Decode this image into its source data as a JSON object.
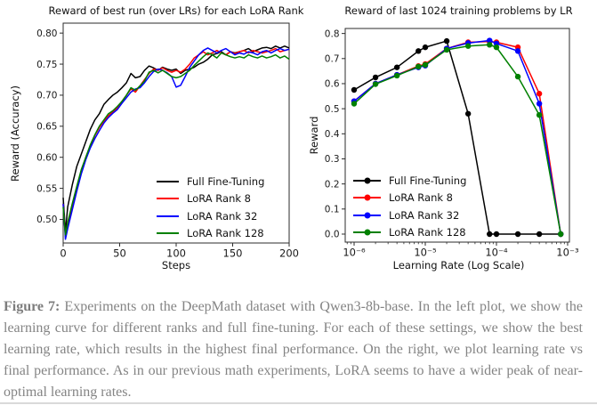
{
  "figure_caption": {
    "label": "Figure 7:",
    "text": "Experiments on the DeepMath dataset with Qwen3-8b-base. In the left plot, we show the learning curve for different ranks and full fine-tuning. For each of these settings, we show the best learning rate, which results in the highest final performance. On the right, we plot learning rate vs final performance. As in our previous math experiments, LoRA seems to have a wider peak of near-optimal learning rates."
  },
  "colors": {
    "full_fine_tuning": "#000000",
    "lora_rank_8": "#ff0000",
    "lora_rank_32": "#0000ff",
    "lora_rank_128": "#008000",
    "axis": "#2b2b2b",
    "caption_text": "#848484",
    "bottom_rule": "#d9d9d9"
  },
  "chart_data": [
    {
      "type": "line",
      "title": "Reward of best run (over LRs) for each LoRA Rank",
      "xlabel": "Steps",
      "ylabel": "Reward (Accuracy)",
      "x_scale": "linear",
      "xlim": [
        0,
        200
      ],
      "ylim": [
        0.462,
        0.816
      ],
      "grid": false,
      "legend_position": "lower right",
      "markers": false,
      "x_ticks": [
        0,
        50,
        100,
        150,
        200
      ],
      "x_tick_labels": [
        "0",
        "50",
        "100",
        "150",
        "200"
      ],
      "y_ticks": [
        0.5,
        0.55,
        0.6,
        0.65,
        0.7,
        0.75,
        0.8
      ],
      "y_tick_labels": [
        "0.50",
        "0.55",
        "0.60",
        "0.65",
        "0.70",
        "0.75",
        "0.80"
      ],
      "x": [
        0,
        2,
        4,
        8,
        12,
        16,
        20,
        24,
        28,
        32,
        36,
        40,
        44,
        48,
        52,
        56,
        60,
        64,
        68,
        72,
        76,
        80,
        84,
        88,
        92,
        96,
        100,
        104,
        108,
        112,
        116,
        120,
        124,
        128,
        132,
        136,
        140,
        144,
        148,
        152,
        156,
        160,
        164,
        168,
        172,
        176,
        180,
        184,
        188,
        192,
        196,
        200
      ],
      "series": [
        {
          "name": "Full Fine-Tuning",
          "color": "#000000",
          "values": [
            0.535,
            0.48,
            0.52,
            0.555,
            0.585,
            0.605,
            0.625,
            0.645,
            0.66,
            0.67,
            0.685,
            0.693,
            0.7,
            0.705,
            0.712,
            0.72,
            0.735,
            0.728,
            0.73,
            0.74,
            0.747,
            0.744,
            0.74,
            0.745,
            0.742,
            0.74,
            0.742,
            0.735,
            0.74,
            0.742,
            0.745,
            0.75,
            0.753,
            0.758,
            0.765,
            0.767,
            0.77,
            0.765,
            0.77,
            0.768,
            0.77,
            0.772,
            0.775,
            0.77,
            0.773,
            0.776,
            0.777,
            0.775,
            0.779,
            0.776,
            0.779,
            0.776
          ]
        },
        {
          "name": "LoRA Rank 8",
          "color": "#ff0000",
          "values": [
            0.525,
            0.473,
            0.49,
            0.52,
            0.55,
            0.578,
            0.6,
            0.618,
            0.635,
            0.648,
            0.658,
            0.667,
            0.673,
            0.68,
            0.69,
            0.7,
            0.71,
            0.705,
            0.715,
            0.725,
            0.735,
            0.742,
            0.74,
            0.744,
            0.74,
            0.737,
            0.74,
            0.737,
            0.742,
            0.75,
            0.76,
            0.765,
            0.77,
            0.765,
            0.768,
            0.772,
            0.768,
            0.765,
            0.77,
            0.767,
            0.77,
            0.772,
            0.768,
            0.772,
            0.77,
            0.768,
            0.77,
            0.772,
            0.775,
            0.77,
            0.772,
            0.774
          ]
        },
        {
          "name": "LoRA Rank 32",
          "color": "#0000ff",
          "values": [
            0.525,
            0.468,
            0.485,
            0.515,
            0.545,
            0.573,
            0.596,
            0.615,
            0.63,
            0.643,
            0.655,
            0.664,
            0.671,
            0.677,
            0.687,
            0.696,
            0.705,
            0.71,
            0.712,
            0.72,
            0.73,
            0.738,
            0.742,
            0.74,
            0.736,
            0.73,
            0.713,
            0.716,
            0.73,
            0.745,
            0.755,
            0.765,
            0.772,
            0.776,
            0.772,
            0.768,
            0.772,
            0.775,
            0.77,
            0.765,
            0.768,
            0.766,
            0.77,
            0.768,
            0.765,
            0.77,
            0.772,
            0.768,
            0.772,
            0.775,
            0.772,
            0.774
          ]
        },
        {
          "name": "LoRA Rank 128",
          "color": "#008000",
          "values": [
            0.52,
            0.475,
            0.495,
            0.525,
            0.553,
            0.58,
            0.6,
            0.62,
            0.636,
            0.65,
            0.66,
            0.67,
            0.675,
            0.682,
            0.69,
            0.7,
            0.712,
            0.708,
            0.715,
            0.723,
            0.737,
            0.74,
            0.736,
            0.74,
            0.735,
            0.73,
            0.728,
            0.73,
            0.735,
            0.74,
            0.748,
            0.755,
            0.762,
            0.768,
            0.765,
            0.76,
            0.768,
            0.765,
            0.762,
            0.76,
            0.762,
            0.76,
            0.765,
            0.762,
            0.76,
            0.763,
            0.76,
            0.762,
            0.765,
            0.76,
            0.763,
            0.758
          ]
        }
      ]
    },
    {
      "type": "line",
      "title": "Reward of last 1024 training problems by LR",
      "xlabel": "Learning Rate (Log Scale)",
      "ylabel": "Reward",
      "x_scale": "log",
      "xlim": [
        7.5e-07,
        0.00106
      ],
      "ylim": [
        -0.032,
        0.82
      ],
      "grid": false,
      "legend_position": "lower left",
      "markers": true,
      "x_ticks": [
        1e-06,
        1e-05,
        0.0001,
        0.001
      ],
      "x_tick_labels": [
        "10⁻⁶",
        "10⁻⁵",
        "10⁻⁴",
        "10⁻³"
      ],
      "y_ticks": [
        0.0,
        0.1,
        0.2,
        0.3,
        0.4,
        0.5,
        0.6,
        0.7,
        0.8
      ],
      "y_tick_labels": [
        "0.0",
        "0.1",
        "0.2",
        "0.3",
        "0.4",
        "0.5",
        "0.6",
        "0.7",
        "0.8"
      ],
      "x": [
        1e-06,
        2e-06,
        4e-06,
        8e-06,
        1e-05,
        2e-05,
        4e-05,
        8e-05,
        0.0001,
        0.0002,
        0.0004,
        0.0008
      ],
      "series": [
        {
          "name": "Full Fine-Tuning",
          "color": "#000000",
          "values": [
            0.575,
            0.625,
            0.665,
            0.73,
            0.745,
            0.77,
            0.48,
            0.0,
            0.0,
            0.0,
            0.0,
            0.0
          ]
        },
        {
          "name": "LoRA Rank 8",
          "color": "#ff0000",
          "values": [
            0.53,
            0.6,
            0.635,
            0.67,
            0.678,
            0.74,
            0.765,
            0.768,
            0.765,
            0.745,
            0.56,
            0.0
          ]
        },
        {
          "name": "LoRA Rank 32",
          "color": "#0000ff",
          "values": [
            0.53,
            0.6,
            0.635,
            0.665,
            0.672,
            0.74,
            0.762,
            0.772,
            0.76,
            0.73,
            0.52,
            0.0
          ]
        },
        {
          "name": "LoRA Rank 128",
          "color": "#008000",
          "values": [
            0.52,
            0.598,
            0.632,
            0.668,
            0.675,
            0.735,
            0.75,
            0.755,
            0.745,
            0.628,
            0.475,
            0.0
          ]
        }
      ]
    }
  ]
}
